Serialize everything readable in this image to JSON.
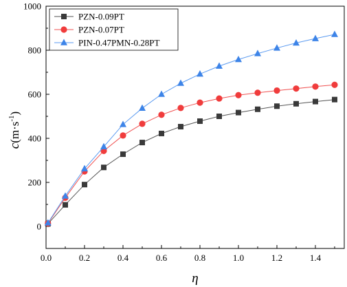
{
  "chart_data": {
    "type": "line",
    "x": [
      0.01,
      0.1,
      0.2,
      0.3,
      0.4,
      0.5,
      0.6,
      0.7,
      0.8,
      0.9,
      1.0,
      1.1,
      1.2,
      1.3,
      1.4,
      1.5
    ],
    "series": [
      {
        "name": "PZN-0.09PT",
        "marker": "square",
        "color": "#3a3a3a",
        "line_color": "#555555",
        "values": [
          12,
          98,
          190,
          268,
          328,
          381,
          422,
          453,
          478,
          500,
          517,
          532,
          546,
          557,
          567,
          576
        ]
      },
      {
        "name": "PZN-0.07PT",
        "marker": "circle",
        "color": "#f03c3c",
        "line_color": "#f05050",
        "values": [
          14,
          130,
          250,
          343,
          413,
          466,
          507,
          538,
          562,
          581,
          596,
          607,
          617,
          626,
          635,
          643
        ]
      },
      {
        "name": "PIN-0.47PMN-0.28PT",
        "marker": "triangle",
        "color": "#3d84e8",
        "line_color": "#5a9af0",
        "values": [
          16,
          138,
          262,
          362,
          463,
          537,
          600,
          650,
          692,
          728,
          758,
          785,
          810,
          833,
          853,
          872
        ]
      }
    ],
    "xlim": [
      0.0,
      1.55
    ],
    "ylim": [
      -100,
      1000
    ],
    "xticks": [
      0.0,
      0.2,
      0.4,
      0.6,
      0.8,
      1.0,
      1.2,
      1.4
    ],
    "xtick_labels": [
      "0.0",
      "0.2",
      "0.4",
      "0.6",
      "0.8",
      "1.0",
      "1.2",
      "1.4"
    ],
    "yticks": [
      0,
      200,
      400,
      600,
      800,
      1000
    ],
    "ytick_labels": [
      "0",
      "200",
      "400",
      "600",
      "800",
      "1000"
    ],
    "xlabel": "η",
    "ylabel": {
      "symbol": "c",
      "unit_open": "(m·s",
      "unit_exp": "-1",
      "unit_close": ")"
    },
    "legend_position": "top-left",
    "grid": false
  }
}
